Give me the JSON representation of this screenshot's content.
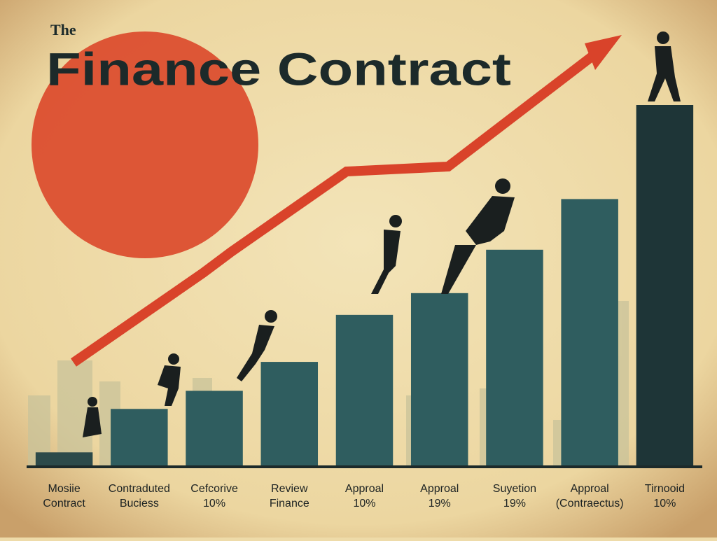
{
  "chart_data": {
    "type": "bar",
    "title_prefix": "The",
    "title": "Finance Contract",
    "categories": [
      [
        "Mosiie",
        "Contract"
      ],
      [
        "Contraduted",
        "Buciess"
      ],
      [
        "Cefcorive",
        "10%"
      ],
      [
        "Review",
        "Finance"
      ],
      [
        "Approal",
        "10%"
      ],
      [
        "Approal",
        "19%"
      ],
      [
        "Suyetion",
        "19%"
      ],
      [
        "Approal",
        "(Contraectus)"
      ],
      [
        "Tirnooid",
        "10%"
      ]
    ],
    "values": [
      4,
      16,
      21,
      29,
      42,
      48,
      60,
      74,
      100
    ],
    "colors": [
      "#2c4a4a",
      "#2f5d5f",
      "#2f5d5f",
      "#2f5d5f",
      "#2f5d5f",
      "#2f5d5f",
      "#2f5d5f",
      "#2f5d5f",
      "#1e3537"
    ],
    "ylim": [
      0,
      100
    ]
  }
}
